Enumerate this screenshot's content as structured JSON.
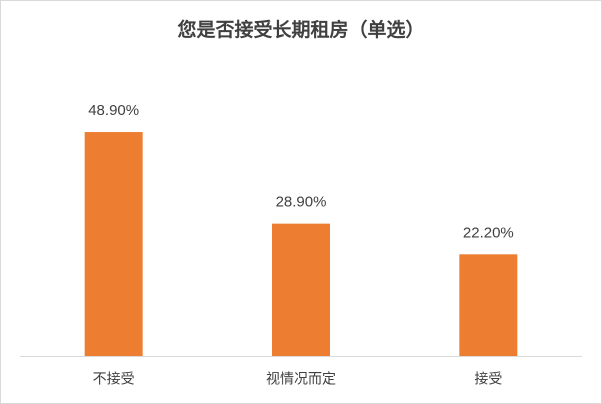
{
  "chart_data": {
    "type": "bar",
    "title": "您是否接受长期租房（单选）",
    "categories": [
      "不接受",
      "视情况而定",
      "接受"
    ],
    "values": [
      48.9,
      28.9,
      22.2
    ],
    "value_labels": [
      "48.90%",
      "28.90%",
      "22.20%"
    ],
    "color": "#ed7d31"
  }
}
